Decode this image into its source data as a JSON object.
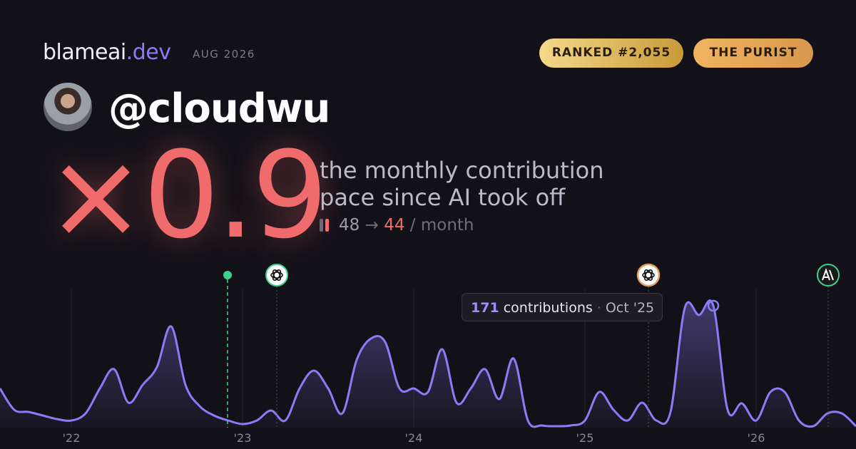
{
  "header": {
    "brand": "blameai",
    "brand_tld": ".dev",
    "period": "AUG 2026",
    "badges": [
      "RANKED #2,055",
      "THE PURIST"
    ]
  },
  "profile": {
    "handle": "@cloudwu"
  },
  "headline": {
    "multiplier": "×0.9",
    "description": [
      "the monthly contribution",
      "pace since AI took off"
    ],
    "before": 48,
    "arrow": "→",
    "after": 44,
    "unit": "/ month"
  },
  "chart_data": {
    "type": "area",
    "categories": [
      null,
      null,
      null,
      null,
      null,
      "'22",
      null,
      null,
      null,
      null,
      null,
      null,
      null,
      null,
      null,
      null,
      null,
      "'23",
      null,
      null,
      null,
      null,
      null,
      null,
      null,
      null,
      null,
      null,
      null,
      "'24",
      null,
      null,
      null,
      null,
      null,
      null,
      null,
      null,
      null,
      null,
      null,
      "'25",
      null,
      null,
      null,
      null,
      null,
      null,
      null,
      null,
      null,
      null,
      null,
      "'26",
      null,
      null,
      null,
      null,
      null,
      null,
      null
    ],
    "values": [
      55,
      25,
      22,
      17,
      12,
      10,
      20,
      55,
      82,
      35,
      60,
      85,
      142,
      60,
      30,
      17,
      10,
      5,
      10,
      24,
      10,
      55,
      80,
      55,
      20,
      95,
      125,
      120,
      55,
      55,
      50,
      110,
      35,
      55,
      82,
      40,
      97,
      10,
      3,
      2,
      3,
      10,
      50,
      25,
      10,
      35,
      10,
      22,
      168,
      158,
      171,
      25,
      34,
      10,
      50,
      50,
      10,
      2,
      20,
      20,
      2
    ],
    "color": "#8b7cf6",
    "ylim": [
      0,
      200
    ],
    "grid": true,
    "tooltip": {
      "index": 50,
      "label": "contributions",
      "separator": "·",
      "date": "Oct '25"
    }
  }
}
